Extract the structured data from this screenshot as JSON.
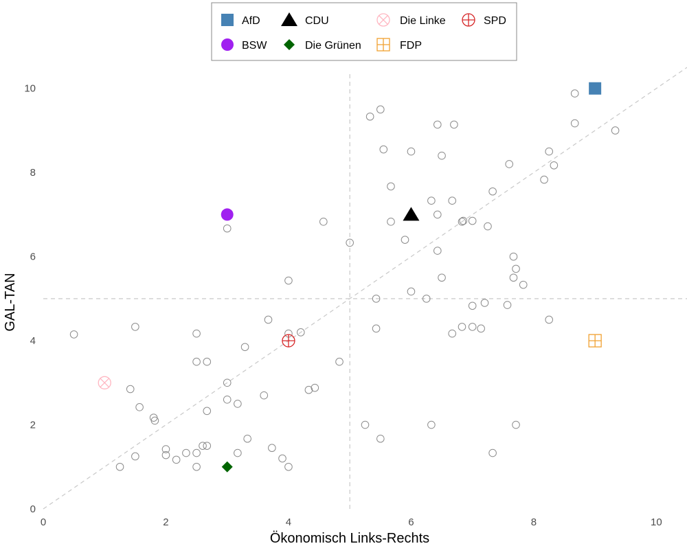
{
  "chart_data": {
    "type": "scatter",
    "xlabel": "Ökonomisch Links-Rechts",
    "ylabel": "GAL-TAN",
    "xlim": [
      0,
      10.5
    ],
    "ylim": [
      0,
      10.6
    ],
    "x_ticks": [
      0,
      2,
      4,
      6,
      8,
      10
    ],
    "y_ticks": [
      0,
      2,
      4,
      6,
      8,
      10
    ],
    "grid": false,
    "reference_lines": {
      "vertical_x": 5,
      "horizontal_y": 5,
      "diagonal": "y = x"
    },
    "legend_position": "top",
    "parties": [
      {
        "name": "AfD",
        "x": 9,
        "y": 10,
        "shape": "square",
        "color": "#4682b4"
      },
      {
        "name": "CDU",
        "x": 6,
        "y": 7,
        "shape": "triangle",
        "color": "#000000"
      },
      {
        "name": "Die Linke",
        "x": 1,
        "y": 3,
        "shape": "circle-x",
        "color": "#ffb6c1"
      },
      {
        "name": "SPD",
        "x": 4,
        "y": 4,
        "shape": "circle-plus",
        "color": "#d62728"
      },
      {
        "name": "BSW",
        "x": 3,
        "y": 7,
        "shape": "circle",
        "color": "#a020f0"
      },
      {
        "name": "Die Grünen",
        "x": 3,
        "y": 1,
        "shape": "diamond",
        "color": "#006400"
      },
      {
        "name": "FDP",
        "x": 9,
        "y": 4,
        "shape": "square-plus",
        "color": "#f0a030"
      }
    ],
    "respondents": [
      [
        0.5,
        4.15
      ],
      [
        1.25,
        1.0
      ],
      [
        1.42,
        2.85
      ],
      [
        1.5,
        4.33
      ],
      [
        1.5,
        1.25
      ],
      [
        1.57,
        2.42
      ],
      [
        1.8,
        2.17
      ],
      [
        1.82,
        2.1
      ],
      [
        2.0,
        1.42
      ],
      [
        2.0,
        1.28
      ],
      [
        2.17,
        1.17
      ],
      [
        2.33,
        1.33
      ],
      [
        2.5,
        4.17
      ],
      [
        2.5,
        3.5
      ],
      [
        2.5,
        1.33
      ],
      [
        2.5,
        1.0
      ],
      [
        2.6,
        1.5
      ],
      [
        2.67,
        3.5
      ],
      [
        2.67,
        2.33
      ],
      [
        2.67,
        1.5
      ],
      [
        3.0,
        6.67
      ],
      [
        3.0,
        3.0
      ],
      [
        3.0,
        2.6
      ],
      [
        3.17,
        2.5
      ],
      [
        3.17,
        1.33
      ],
      [
        3.29,
        3.85
      ],
      [
        3.33,
        1.67
      ],
      [
        3.6,
        2.7
      ],
      [
        3.67,
        4.5
      ],
      [
        3.73,
        1.45
      ],
      [
        3.9,
        1.2
      ],
      [
        4.0,
        5.43
      ],
      [
        4.0,
        4.17
      ],
      [
        4.0,
        1.0
      ],
      [
        4.2,
        4.2
      ],
      [
        4.33,
        2.83
      ],
      [
        4.43,
        2.88
      ],
      [
        4.57,
        6.83
      ],
      [
        4.83,
        3.5
      ],
      [
        5.0,
        6.33
      ],
      [
        5.25,
        2.0
      ],
      [
        5.33,
        9.33
      ],
      [
        5.43,
        5.0
      ],
      [
        5.43,
        4.29
      ],
      [
        5.5,
        9.5
      ],
      [
        5.5,
        1.67
      ],
      [
        5.55,
        8.55
      ],
      [
        5.67,
        7.67
      ],
      [
        5.67,
        6.83
      ],
      [
        5.9,
        6.4
      ],
      [
        6.0,
        8.5
      ],
      [
        6.0,
        5.17
      ],
      [
        6.25,
        5.0
      ],
      [
        6.33,
        7.33
      ],
      [
        6.33,
        2.0
      ],
      [
        6.43,
        9.14
      ],
      [
        6.43,
        7.0
      ],
      [
        6.43,
        6.14
      ],
      [
        6.5,
        8.4
      ],
      [
        6.5,
        5.5
      ],
      [
        6.67,
        7.33
      ],
      [
        6.67,
        4.17
      ],
      [
        6.7,
        9.14
      ],
      [
        6.83,
        6.83
      ],
      [
        6.83,
        4.33
      ],
      [
        6.85,
        6.85
      ],
      [
        7.0,
        6.85
      ],
      [
        7.0,
        4.83
      ],
      [
        7.0,
        4.33
      ],
      [
        7.14,
        4.29
      ],
      [
        7.2,
        4.9
      ],
      [
        7.25,
        6.72
      ],
      [
        7.33,
        7.55
      ],
      [
        7.33,
        1.33
      ],
      [
        7.57,
        4.85
      ],
      [
        7.6,
        8.2
      ],
      [
        7.67,
        6.0
      ],
      [
        7.67,
        5.5
      ],
      [
        7.71,
        5.71
      ],
      [
        7.71,
        2.0
      ],
      [
        7.83,
        5.33
      ],
      [
        8.17,
        7.83
      ],
      [
        8.25,
        8.5
      ],
      [
        8.25,
        4.5
      ],
      [
        8.33,
        8.17
      ],
      [
        8.67,
        9.88
      ],
      [
        8.67,
        9.17
      ],
      [
        9.33,
        9.0
      ]
    ]
  }
}
